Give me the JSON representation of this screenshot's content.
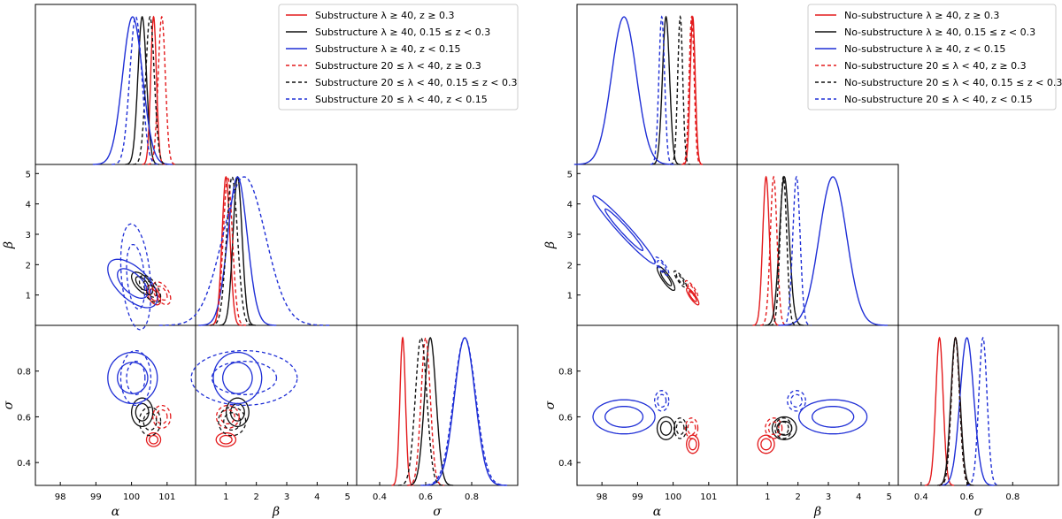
{
  "colors": {
    "red": "#e31a1c",
    "black": "#111111",
    "blue": "#1f2fd6"
  },
  "chart_data": [
    {
      "type": "corner",
      "params": [
        "α",
        "β",
        "σ"
      ],
      "ticks": {
        "alpha": [
          98,
          99,
          100,
          101
        ],
        "beta_vertical": [
          1,
          2,
          3,
          4,
          5
        ],
        "beta_horizontal": [
          1,
          2,
          3,
          4,
          5
        ],
        "sigma_vertical": [
          0.4,
          0.6,
          0.8
        ],
        "sigma_horizontal": [
          0.4,
          0.6,
          0.8
        ]
      },
      "ranges": {
        "alpha": [
          97.3,
          101.8
        ],
        "beta": [
          0,
          5.3
        ],
        "sigma": [
          0.3,
          1.0
        ]
      },
      "legend": {
        "placement": "top-right of figure half"
      },
      "series": [
        {
          "name": "Substructure λ ≥ 40, z ≥ 0.3",
          "color": "red",
          "dash": false,
          "alpha": [
            100.62,
            0.08
          ],
          "beta": [
            1.0,
            0.13
          ],
          "sigma": [
            0.5,
            0.012
          ],
          "corr_ab": -0.5,
          "lw_sigma": 0.0
        },
        {
          "name": "Substructure λ ≥ 40, 0.15 ≤ z < 0.3",
          "color": "black",
          "dash": false,
          "alpha": [
            100.3,
            0.12
          ],
          "beta": [
            1.38,
            0.15
          ],
          "sigma": [
            0.62,
            0.025
          ],
          "corr_ab": -0.6
        },
        {
          "name": "Substructure λ ≥ 40, z < 0.15",
          "color": "blue",
          "dash": false,
          "alpha": [
            100.03,
            0.28
          ],
          "beta": [
            1.38,
            0.32
          ],
          "sigma": [
            0.77,
            0.045
          ],
          "corr_ab": -0.6
        },
        {
          "name": "Substructure 20 ≤ λ < 40, z ≥ 0.3",
          "color": "red",
          "dash": true,
          "alpha": [
            100.85,
            0.1
          ],
          "beta": [
            1.06,
            0.15
          ],
          "sigma": [
            0.6,
            0.02
          ],
          "corr_ab": -0.5
        },
        {
          "name": "Substructure 20 ≤ λ < 40, 0.15 ≤ z < 0.3",
          "color": "black",
          "dash": true,
          "alpha": [
            100.52,
            0.12
          ],
          "beta": [
            1.2,
            0.18
          ],
          "sigma": [
            0.58,
            0.025
          ],
          "corr_ab": -0.6
        },
        {
          "name": "Substructure 20 ≤ λ < 40, z < 0.15",
          "color": "blue",
          "dash": true,
          "alpha": [
            100.12,
            0.17
          ],
          "beta": [
            1.6,
            0.7
          ],
          "sigma": [
            0.77,
            0.048
          ],
          "corr_ab": -0.3
        }
      ],
      "xlabels": [
        "α",
        "β",
        "σ"
      ],
      "ylabels": [
        "β",
        "σ"
      ]
    },
    {
      "type": "corner",
      "params": [
        "α",
        "β",
        "σ"
      ],
      "ticks": {
        "alpha": [
          98,
          99,
          100,
          101
        ],
        "beta_vertical": [
          1,
          2,
          3,
          4,
          5
        ],
        "beta_horizontal": [
          1,
          2,
          3,
          4,
          5
        ],
        "sigma_vertical": [
          0.4,
          0.6,
          0.8
        ],
        "sigma_horizontal": [
          0.4,
          0.6,
          0.8
        ]
      },
      "ranges": {
        "alpha": [
          97.3,
          101.8
        ],
        "beta": [
          0,
          5.3
        ],
        "sigma": [
          0.3,
          1.0
        ]
      },
      "legend": {
        "placement": "top-right of figure half"
      },
      "series": [
        {
          "name": "No-substructure λ ≥ 40, z ≥ 0.3",
          "color": "red",
          "dash": false,
          "alpha": [
            100.55,
            0.07
          ],
          "beta": [
            0.95,
            0.11
          ],
          "sigma": [
            0.48,
            0.016
          ],
          "corr_ab": -0.85
        },
        {
          "name": "No-substructure λ ≥ 40, 0.15 ≤ z < 0.3",
          "color": "black",
          "dash": false,
          "alpha": [
            99.8,
            0.1
          ],
          "beta": [
            1.55,
            0.16
          ],
          "sigma": [
            0.55,
            0.02
          ],
          "corr_ab": -0.85
        },
        {
          "name": "No-substructure λ ≥ 40, z < 0.15",
          "color": "blue",
          "dash": false,
          "alpha": [
            98.62,
            0.35
          ],
          "beta": [
            3.15,
            0.45
          ],
          "sigma": [
            0.6,
            0.03
          ],
          "corr_ab": -0.97
        },
        {
          "name": "No-substructure 20 ≤ λ < 40, z ≥ 0.3",
          "color": "red",
          "dash": true,
          "alpha": [
            100.52,
            0.07
          ],
          "beta": [
            1.2,
            0.11
          ],
          "sigma": [
            0.55,
            0.018
          ],
          "corr_ab": -0.85
        },
        {
          "name": "No-substructure 20 ≤ λ < 40, 0.15 ≤ z < 0.3",
          "color": "black",
          "dash": true,
          "alpha": [
            100.2,
            0.07
          ],
          "beta": [
            1.52,
            0.11
          ],
          "sigma": [
            0.55,
            0.018
          ],
          "corr_ab": -0.85
        },
        {
          "name": "No-substructure 20 ≤ λ < 40, z < 0.15",
          "color": "blue",
          "dash": true,
          "alpha": [
            99.68,
            0.08
          ],
          "beta": [
            1.95,
            0.12
          ],
          "sigma": [
            0.67,
            0.018
          ],
          "corr_ab": -0.8
        }
      ],
      "xlabels": [
        "α",
        "β",
        "σ"
      ],
      "ylabels": [
        "β",
        "σ"
      ]
    }
  ]
}
